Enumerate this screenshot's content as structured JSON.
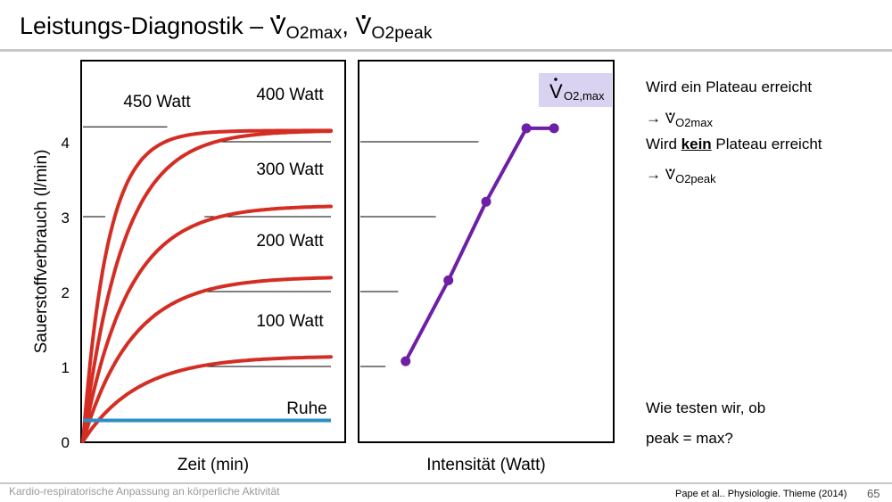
{
  "title": {
    "prefix": "Leistungs-Diagnostik – ",
    "v1": "V",
    "sub1": "O2max",
    "sep": ", ",
    "v2": "V",
    "sub2": "O2peak"
  },
  "side_notes": {
    "line1": "Wird ein Plateau erreicht",
    "line2_arrow": "→ ",
    "line2_v": "V",
    "line2_sub": "O2max",
    "line3_prefix": "Wird ",
    "line3_bold": "kein",
    "line3_suffix": " Plateau erreicht",
    "line4_arrow": "→ ",
    "line4_v": "V",
    "line4_sub": "O2peak",
    "question1": "Wie testen wir, ob",
    "question2": "peak = max?"
  },
  "footer": {
    "left": "Kardio-respiratorische Anpassung an körperliche Aktivität",
    "citation": "Pape et al.. Physiologie. Thieme (2014)",
    "page": "65"
  },
  "colors": {
    "red": "#d42e24",
    "blue": "#2b8fc4",
    "purple": "#6d1fa6",
    "highlight": "#d9d2f1",
    "rule": "#c8c8c8"
  },
  "chart_data": [
    {
      "type": "line",
      "ylabel": "Sauerstoffverbrauch (l/min)",
      "xlabel": "Zeit (min)",
      "yticks": [
        "0",
        "1",
        "2",
        "3",
        "4"
      ],
      "ylim": [
        0,
        4.7
      ],
      "xlim": [
        0,
        10
      ],
      "series": [
        {
          "name": "450 Watt",
          "plateau": 4.15,
          "k": 1.0,
          "dashes": [
            [
              4.2,
              0.0,
              3.4
            ]
          ]
        },
        {
          "name": "400 Watt",
          "plateau": 4.15,
          "k": 0.62,
          "dashes": [
            [
              4.0,
              5.3,
              10.0
            ]
          ]
        },
        {
          "name": "300 Watt",
          "plateau": 3.15,
          "k": 0.55,
          "dashes": [
            [
              3.0,
              0.0,
              0.9
            ],
            [
              3.0,
              4.9,
              10.0
            ]
          ]
        },
        {
          "name": "200 Watt",
          "plateau": 2.2,
          "k": 0.5,
          "dashes": [
            [
              2.0,
              4.8,
              10.0
            ]
          ]
        },
        {
          "name": "100 Watt",
          "plateau": 1.14,
          "k": 0.45,
          "dashes": [
            [
              1.0,
              4.7,
              10.0
            ]
          ]
        },
        {
          "name": "Ruhe",
          "plateau": 0.28,
          "k": 0,
          "dashes": []
        }
      ]
    },
    {
      "type": "line",
      "xlabel": "Intensität (Watt)",
      "annotation": {
        "v": "V",
        "sub": "O2,max"
      },
      "xlim": [
        0,
        10
      ],
      "ylim": [
        0,
        4.7
      ],
      "points": [
        {
          "x": 1.8,
          "y": 1.07
        },
        {
          "x": 3.5,
          "y": 2.15
        },
        {
          "x": 5.0,
          "y": 3.2
        },
        {
          "x": 6.6,
          "y": 4.18
        },
        {
          "x": 7.7,
          "y": 4.18
        }
      ],
      "dashes": [
        [
          4.0,
          0.0,
          4.7
        ],
        [
          3.0,
          0.0,
          3.0
        ],
        [
          2.0,
          0.0,
          1.5
        ],
        [
          1.0,
          0.0,
          1.0
        ]
      ]
    }
  ]
}
